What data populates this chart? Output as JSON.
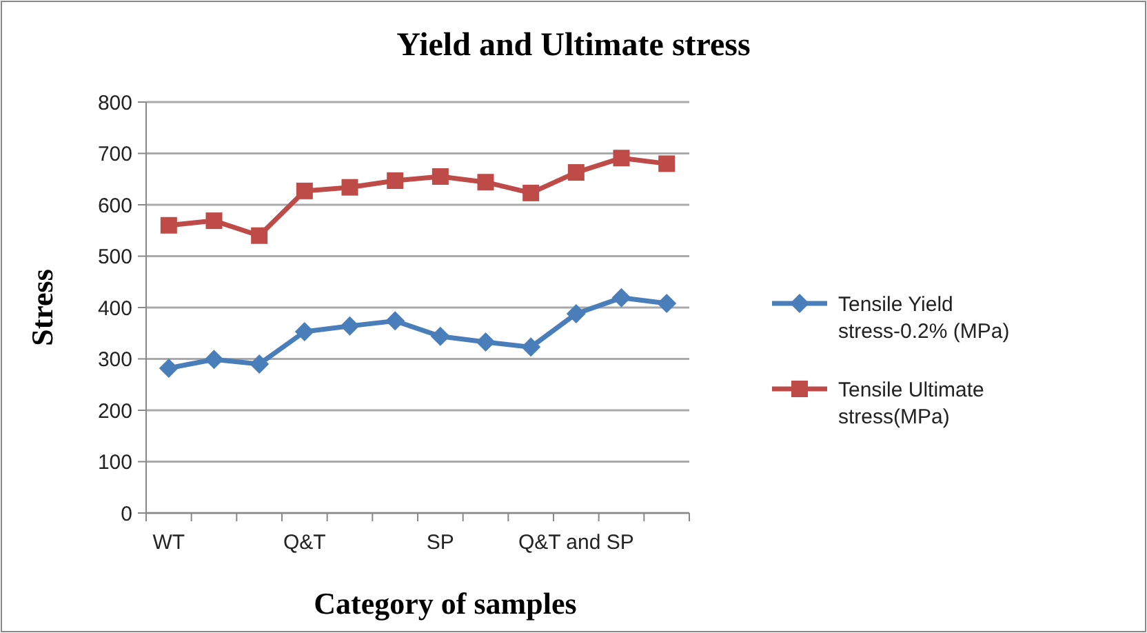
{
  "chart_data": {
    "type": "line",
    "title": "Yield and Ultimate stress",
    "xlabel": "Category  of samples",
    "ylabel": "Stress",
    "categories": [
      "WT",
      null,
      null,
      "Q&T",
      null,
      null,
      "SP",
      null,
      null,
      "Q&T and SP",
      null,
      null
    ],
    "series": [
      {
        "name": "Tensile Yield stress-0.2% (MPa)",
        "color": "#4a7ebb",
        "marker": "diamond",
        "values": [
          282,
          299,
          290,
          353,
          364,
          374,
          344,
          333,
          323,
          388,
          419,
          408
        ]
      },
      {
        "name": "Tensile Ultimate stress(MPa)",
        "color": "#be4b48",
        "marker": "square",
        "values": [
          560,
          569,
          540,
          627,
          634,
          647,
          655,
          644,
          623,
          663,
          691,
          680
        ]
      }
    ],
    "ylim": [
      0,
      800
    ],
    "yticks": [
      0,
      100,
      200,
      300,
      400,
      500,
      600,
      700,
      800
    ],
    "grid": "y",
    "legend": "right"
  }
}
